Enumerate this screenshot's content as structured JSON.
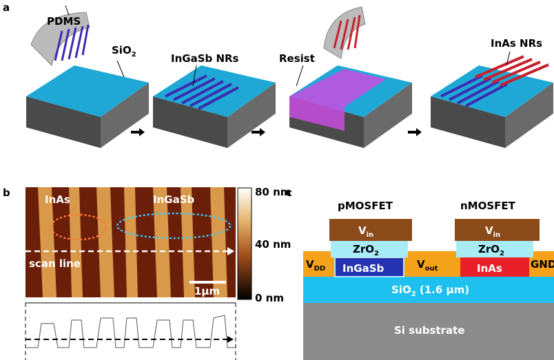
{
  "panel_a": {
    "label": "a",
    "pdms": "PDMS",
    "sio2": "SiO",
    "sio2_sub": "2",
    "ingasb_nrs": "InGaSb NRs",
    "resist": "Resist",
    "inas_nrs": "InAs NRs"
  },
  "panel_b": {
    "label": "b",
    "inas": "InAs",
    "ingasb": "InGaSb",
    "scan_line": "scan line",
    "scale_bar": "1μm",
    "colorbar_ticks": [
      "80 nm",
      "40 nm",
      "0 nm"
    ]
  },
  "panel_c": {
    "label": "c",
    "pmosfet": "pMOSFET",
    "nmosfet": "nMOSFET",
    "gates": [
      {
        "text": "V",
        "sub": "in"
      },
      {
        "text": "V",
        "sub": "in"
      }
    ],
    "dielectrics": [
      {
        "text": "ZrO",
        "sub": "2"
      },
      {
        "text": "ZrO",
        "sub": "2"
      }
    ],
    "vdd": {
      "text": "V",
      "sub": "DD"
    },
    "vout": {
      "text": "V",
      "sub": "out"
    },
    "ingasb": "InGaSb",
    "inas": "InAs",
    "gnd": "GND",
    "sio2": {
      "text": "SiO",
      "sub": "2",
      "rest": " (1.6 μm)"
    },
    "substrate": "Si substrate"
  }
}
